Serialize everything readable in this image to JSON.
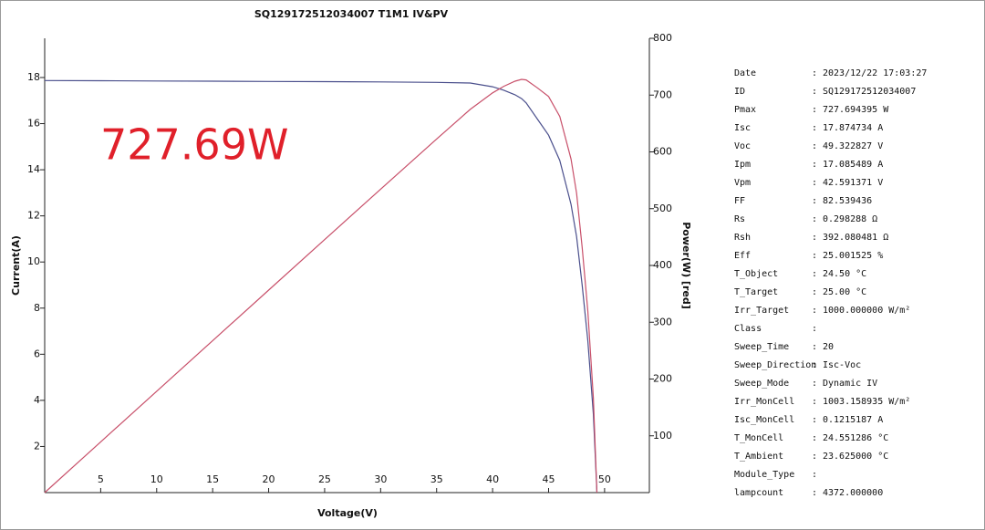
{
  "chart_data": {
    "type": "line",
    "title": "SQ129172512034007 T1M1 IV&PV",
    "x_label": "Voltage(V)",
    "y_label": "Current(A)",
    "y2_label": "Power(W) [red]",
    "annotation": "727.69W",
    "annotation_color": "#e0202a",
    "x": [
      0,
      5,
      10,
      15,
      20,
      25,
      30,
      35,
      38,
      40,
      41,
      42,
      42.59,
      43,
      44,
      45,
      46,
      47,
      47.5,
      48,
      48.5,
      49,
      49.32
    ],
    "series": [
      {
        "color": "#4a4f8c",
        "values": [
          17.87,
          17.86,
          17.85,
          17.84,
          17.83,
          17.82,
          17.81,
          17.79,
          17.76,
          17.6,
          17.45,
          17.25,
          17.085,
          16.9,
          16.2,
          15.5,
          14.4,
          12.5,
          11.1,
          9.0,
          6.6,
          3.4,
          0
        ]
      },
      {
        "color": "#c8506a",
        "axis": "y2",
        "values": [
          0,
          89.3,
          178.5,
          267.6,
          356.6,
          445.5,
          534.3,
          622.7,
          674.9,
          704,
          715.5,
          724.5,
          727.7,
          726.7,
          712.8,
          697.5,
          662.4,
          587.5,
          527.3,
          432,
          320.1,
          166.6,
          0
        ]
      }
    ],
    "xlim": [
      0,
      54
    ],
    "xticks": [
      5,
      10,
      15,
      20,
      25,
      30,
      35,
      40,
      45,
      50
    ],
    "ylim": [
      0,
      19.7
    ],
    "yticks": [
      2,
      4,
      6,
      8,
      10,
      12,
      14,
      16,
      18
    ],
    "y2lim": [
      0,
      800
    ],
    "y2ticks": [
      100,
      200,
      300,
      400,
      500,
      600,
      700,
      800
    ],
    "grid": false
  },
  "info": {
    "separator": ":",
    "rows": [
      {
        "label": "Date",
        "value": "2023/12/22 17:03:27"
      },
      {
        "label": "ID",
        "value": "SQ129172512034007"
      },
      {
        "label": "Pmax",
        "value": "727.694395 W"
      },
      {
        "label": "Isc",
        "value": "17.874734 A"
      },
      {
        "label": "Voc",
        "value": "49.322827 V"
      },
      {
        "label": "Ipm",
        "value": "17.085489 A"
      },
      {
        "label": "Vpm",
        "value": "42.591371 V"
      },
      {
        "label": "FF",
        "value": "82.539436"
      },
      {
        "label": "Rs",
        "value": "0.298288 Ω"
      },
      {
        "label": "Rsh",
        "value": "392.080481 Ω"
      },
      {
        "label": "Eff",
        "value": "25.001525 %"
      },
      {
        "label": "T_Object",
        "value": "24.50 °C"
      },
      {
        "label": "T_Target",
        "value": "25.00 °C"
      },
      {
        "label": "Irr_Target",
        "value": "1000.000000 W/m²"
      },
      {
        "label": "Class"
      },
      {
        "label": "Sweep_Time",
        "value": "20"
      },
      {
        "label": "Sweep_Direction",
        "value": "Isc-Voc"
      },
      {
        "label": "Sweep_Mode",
        "value": "Dynamic IV"
      },
      {
        "label": "Irr_MonCell",
        "value": "1003.158935 W/m²"
      },
      {
        "label": "Isc_MonCell",
        "value": "0.1215187 A"
      },
      {
        "label": "T_MonCell",
        "value": "24.551286 °C"
      },
      {
        "label": "T_Ambient",
        "value": "23.625000 °C"
      },
      {
        "label": "Module_Type"
      },
      {
        "label": "lampcount",
        "value": "4372.000000"
      }
    ]
  }
}
